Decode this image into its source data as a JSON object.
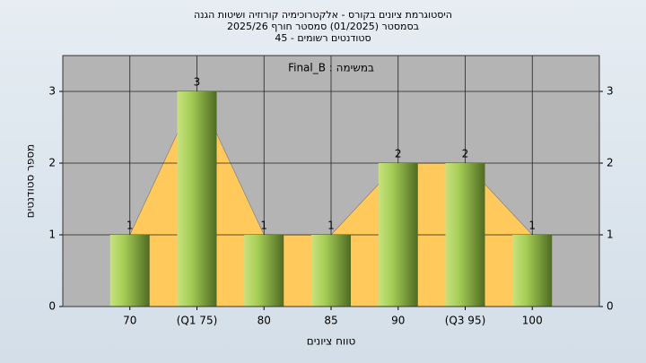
{
  "chart_data": {
    "type": "bar",
    "title": [
      "היסטוגרמת ציונים בקורס - אלקטרוכימיה קורוזיה ושיטות הגנה",
      "בסמסטר  (01/2025)  סמסטר חורף 2025/26",
      "סטודנטים רשומים - 45"
    ],
    "annotation": "Final_B : במשימה",
    "x_label": "טווח ציונים",
    "y_label": "מספר סטודנטים",
    "categories": [
      "70",
      "(Q1 75)",
      "80",
      "85",
      "90",
      "(Q3 95)",
      "100"
    ],
    "values": [
      1,
      3,
      1,
      1,
      2,
      2,
      1
    ],
    "color": "#9cc34a",
    "area_color": "#ffc95c",
    "ylim": [
      0,
      3.5
    ],
    "yticks": [
      0,
      1,
      2,
      3
    ],
    "grid": true
  }
}
